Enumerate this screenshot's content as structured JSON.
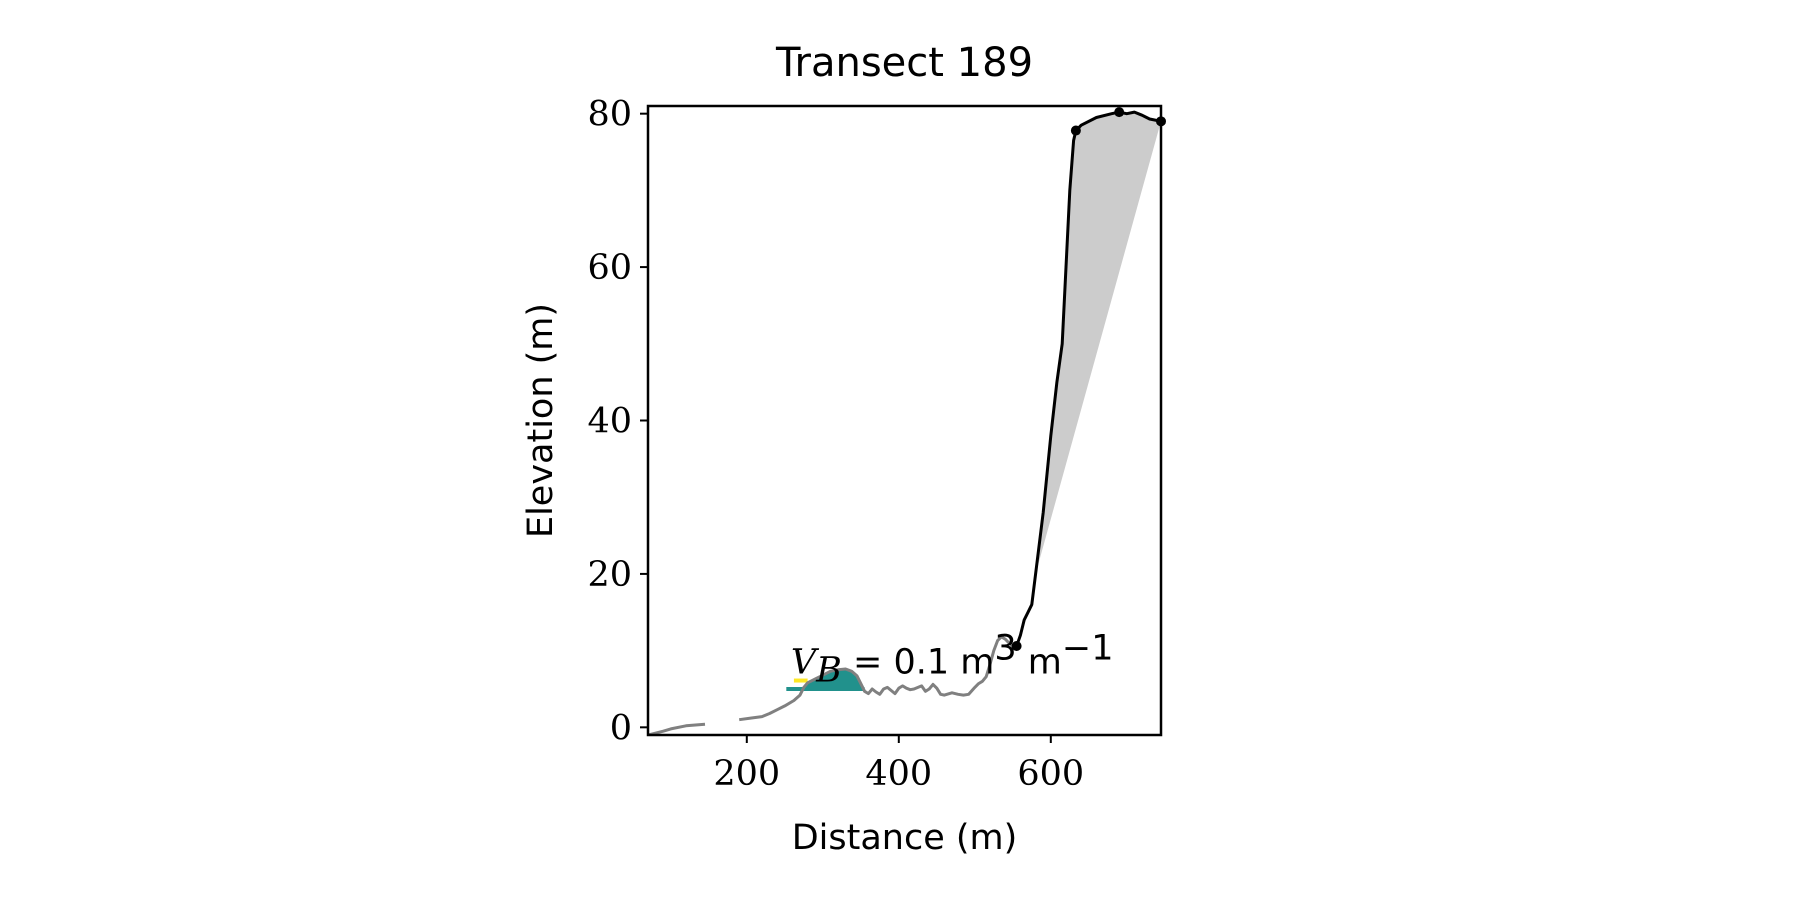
{
  "chart_data": {
    "type": "line",
    "title": "Transect 189",
    "xlabel": "Distance (m)",
    "ylabel": "Elevation (m)",
    "xlim": [
      70,
      745
    ],
    "ylim": [
      -1,
      81
    ],
    "xticks": [
      200,
      400,
      600
    ],
    "xtick_labels": [
      "200",
      "400",
      "600"
    ],
    "yticks": [
      0,
      20,
      40,
      60,
      80
    ],
    "ytick_labels": [
      "0",
      "20",
      "40",
      "60",
      "80"
    ],
    "grid": false,
    "annotation": {
      "var": "V",
      "sub": "B",
      "text": "= 0.1 m",
      "sup": "3",
      "unit": "m",
      "unit_sup": "−1",
      "x": 258,
      "y": 7
    },
    "series": [
      {
        "role": "ground-profile-gray",
        "color": "#808080",
        "segments": [
          [
            [
              70,
              -1
            ],
            [
              90,
              -0.5
            ],
            [
              100,
              -0.2
            ],
            [
              120,
              0.2
            ],
            [
              145,
              0.4
            ]
          ],
          [
            [
              190,
              1.0
            ],
            [
              205,
              1.2
            ],
            [
              220,
              1.4
            ],
            [
              230,
              1.8
            ],
            [
              240,
              2.3
            ],
            [
              250,
              2.8
            ],
            [
              262,
              3.5
            ],
            [
              270,
              4.2
            ],
            [
              275,
              5.2
            ],
            [
              280,
              5.8
            ],
            [
              290,
              6.3
            ],
            [
              300,
              6.8
            ],
            [
              310,
              7.3
            ],
            [
              320,
              7.5
            ],
            [
              330,
              7.6
            ],
            [
              338,
              7.3
            ],
            [
              345,
              6.7
            ],
            [
              350,
              5.7
            ],
            [
              355,
              4.7
            ],
            [
              360,
              4.4
            ],
            [
              365,
              5.0
            ],
            [
              370,
              4.6
            ],
            [
              375,
              4.3
            ],
            [
              380,
              5.0
            ],
            [
              385,
              5.2
            ],
            [
              390,
              4.8
            ],
            [
              395,
              4.4
            ],
            [
              400,
              5.1
            ],
            [
              405,
              5.4
            ],
            [
              410,
              5.1
            ],
            [
              415,
              4.9
            ],
            [
              420,
              5.0
            ],
            [
              430,
              5.4
            ],
            [
              435,
              4.7
            ],
            [
              440,
              5.0
            ],
            [
              445,
              5.6
            ],
            [
              450,
              5.1
            ],
            [
              455,
              4.3
            ],
            [
              460,
              4.2
            ],
            [
              470,
              4.5
            ],
            [
              478,
              4.3
            ],
            [
              485,
              4.2
            ],
            [
              492,
              4.3
            ],
            [
              500,
              5.2
            ],
            [
              505,
              5.7
            ],
            [
              510,
              6.0
            ],
            [
              515,
              6.6
            ],
            [
              520,
              8.2
            ],
            [
              525,
              10.0
            ],
            [
              530,
              11.3
            ],
            [
              535,
              11.8
            ],
            [
              540,
              11.5
            ],
            [
              545,
              11.0
            ],
            [
              550,
              10.6
            ],
            [
              555,
              10.6
            ]
          ]
        ]
      },
      {
        "role": "cliff-profile-black",
        "color": "#000000",
        "points": [
          [
            555,
            10.6
          ],
          [
            560,
            12.0
          ],
          [
            565,
            14.0
          ],
          [
            570,
            15.0
          ],
          [
            575,
            16.0
          ],
          [
            580,
            20.0
          ],
          [
            590,
            28.0
          ],
          [
            600,
            38.0
          ],
          [
            608,
            45.0
          ],
          [
            615,
            50.0
          ],
          [
            620,
            60.0
          ],
          [
            625,
            70.0
          ],
          [
            630,
            76.5
          ],
          [
            633,
            77.8
          ],
          [
            640,
            78.5
          ],
          [
            660,
            79.5
          ],
          [
            680,
            80.0
          ],
          [
            690,
            80.2
          ],
          [
            700,
            80.0
          ],
          [
            710,
            80.2
          ],
          [
            720,
            79.8
          ],
          [
            730,
            79.3
          ],
          [
            745,
            79.0
          ]
        ]
      }
    ],
    "markers": [
      [
        555,
        10.6
      ],
      [
        633,
        77.8
      ],
      [
        690,
        80.2
      ],
      [
        745,
        79.0
      ]
    ],
    "fills": [
      {
        "role": "cliff-volume",
        "color": "#cccccc",
        "polygon": [
          [
            580,
            20.0
          ],
          [
            590,
            28.0
          ],
          [
            600,
            38.0
          ],
          [
            608,
            45.0
          ],
          [
            615,
            50.0
          ],
          [
            620,
            60.0
          ],
          [
            625,
            70.0
          ],
          [
            630,
            76.5
          ],
          [
            633,
            77.8
          ],
          [
            640,
            78.5
          ],
          [
            660,
            79.5
          ],
          [
            680,
            80.0
          ],
          [
            690,
            80.2
          ],
          [
            700,
            80.0
          ],
          [
            710,
            80.2
          ],
          [
            720,
            79.8
          ],
          [
            730,
            79.3
          ],
          [
            745,
            79.0
          ]
        ]
      },
      {
        "role": "bar-volume",
        "color": "#21918c",
        "polygon": [
          [
            270,
            5.0
          ],
          [
            275,
            5.2
          ],
          [
            280,
            5.8
          ],
          [
            290,
            6.3
          ],
          [
            300,
            6.8
          ],
          [
            310,
            7.3
          ],
          [
            320,
            7.5
          ],
          [
            330,
            7.6
          ],
          [
            338,
            7.3
          ],
          [
            345,
            6.7
          ],
          [
            350,
            5.7
          ],
          [
            355,
            5.0
          ]
        ]
      }
    ],
    "hlines": [
      {
        "role": "level-yellow",
        "color": "#fde725",
        "y": 6.1,
        "x0": 262,
        "x1": 280
      },
      {
        "role": "level-teal",
        "color": "#21918c",
        "y": 5.0,
        "x0": 252,
        "x1": 355
      }
    ]
  }
}
